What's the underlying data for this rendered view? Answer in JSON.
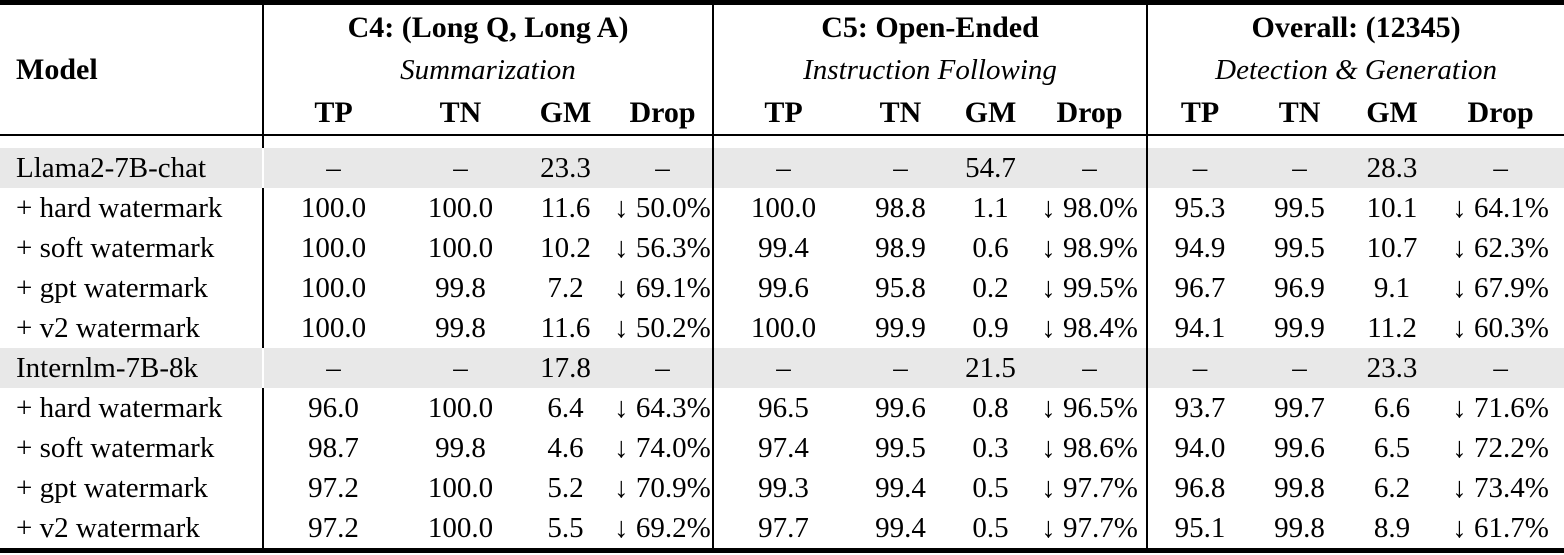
{
  "table": {
    "model_header": "Model",
    "groups": [
      {
        "title": "C4: (Long Q, Long A)",
        "subtitle": "Summarization",
        "columns": [
          "TP",
          "TN",
          "GM",
          "Drop"
        ]
      },
      {
        "title": "C5: Open-Ended",
        "subtitle": "Instruction Following",
        "columns": [
          "TP",
          "TN",
          "GM",
          "Drop"
        ]
      },
      {
        "title": "Overall: (12345)",
        "subtitle": "Detection & Generation",
        "columns": [
          "TP",
          "TN",
          "GM",
          "Drop"
        ]
      }
    ],
    "rows": [
      {
        "model": "Llama2-7B-chat",
        "shaded": true,
        "cells": [
          "–",
          "–",
          "23.3",
          "–",
          "–",
          "–",
          "54.7",
          "–",
          "–",
          "–",
          "28.3",
          "–"
        ]
      },
      {
        "model": "+ hard watermark",
        "shaded": false,
        "cells": [
          "100.0",
          "100.0",
          "11.6",
          "↓ 50.0%",
          "100.0",
          "98.8",
          "1.1",
          "↓ 98.0%",
          "95.3",
          "99.5",
          "10.1",
          "↓ 64.1%"
        ]
      },
      {
        "model": "+ soft watermark",
        "shaded": false,
        "cells": [
          "100.0",
          "100.0",
          "10.2",
          "↓ 56.3%",
          "99.4",
          "98.9",
          "0.6",
          "↓ 98.9%",
          "94.9",
          "99.5",
          "10.7",
          "↓ 62.3%"
        ]
      },
      {
        "model": "+ gpt watermark",
        "shaded": false,
        "cells": [
          "100.0",
          "99.8",
          "7.2",
          "↓ 69.1%",
          "99.6",
          "95.8",
          "0.2",
          "↓ 99.5%",
          "96.7",
          "96.9",
          "9.1",
          "↓ 67.9%"
        ]
      },
      {
        "model": "+ v2 watermark",
        "shaded": false,
        "cells": [
          "100.0",
          "99.8",
          "11.6",
          "↓ 50.2%",
          "100.0",
          "99.9",
          "0.9",
          "↓ 98.4%",
          "94.1",
          "99.9",
          "11.2",
          "↓ 60.3%"
        ]
      },
      {
        "model": "Internlm-7B-8k",
        "shaded": true,
        "cells": [
          "–",
          "–",
          "17.8",
          "–",
          "–",
          "–",
          "21.5",
          "–",
          "–",
          "–",
          "23.3",
          "–"
        ]
      },
      {
        "model": "+ hard watermark",
        "shaded": false,
        "cells": [
          "96.0",
          "100.0",
          "6.4",
          "↓ 64.3%",
          "96.5",
          "99.6",
          "0.8",
          "↓ 96.5%",
          "93.7",
          "99.7",
          "6.6",
          "↓ 71.6%"
        ]
      },
      {
        "model": "+ soft watermark",
        "shaded": false,
        "cells": [
          "98.7",
          "99.8",
          "4.6",
          "↓ 74.0%",
          "97.4",
          "99.5",
          "0.3",
          "↓ 98.6%",
          "94.0",
          "99.6",
          "6.5",
          "↓ 72.2%"
        ]
      },
      {
        "model": "+ gpt watermark",
        "shaded": false,
        "cells": [
          "97.2",
          "100.0",
          "5.2",
          "↓ 70.9%",
          "99.3",
          "99.4",
          "0.5",
          "↓ 97.7%",
          "96.8",
          "99.8",
          "6.2",
          "↓ 73.4%"
        ]
      },
      {
        "model": "+ v2 watermark",
        "shaded": false,
        "cells": [
          "97.2",
          "100.0",
          "5.5",
          "↓ 69.2%",
          "97.7",
          "99.4",
          "0.5",
          "↓ 97.7%",
          "95.1",
          "99.8",
          "8.9",
          "↓ 61.7%"
        ]
      }
    ]
  },
  "colors": {
    "row_shade": "#e8e8e8",
    "rule": "#000000"
  }
}
